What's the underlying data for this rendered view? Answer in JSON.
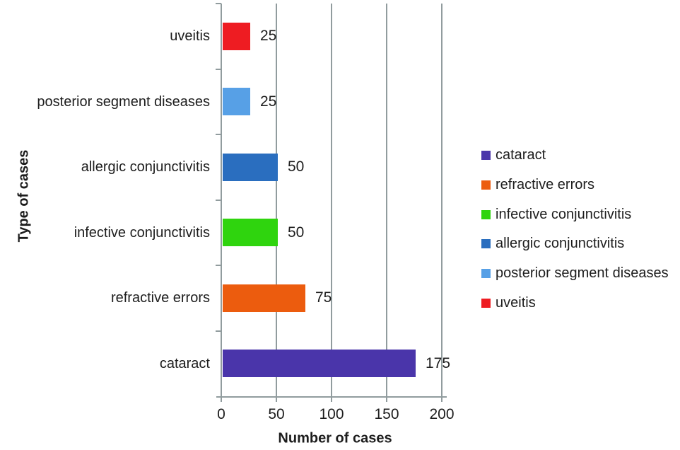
{
  "chart_data": {
    "type": "bar",
    "orientation": "horizontal",
    "title": "",
    "xlabel": "Number of cases",
    "ylabel": "Type of cases",
    "xlim": [
      0,
      200
    ],
    "xticks": [
      0,
      50,
      100,
      150,
      200
    ],
    "grid": "vertical-gridlines-on",
    "legend_position": "right",
    "categories": [
      "uveitis",
      "posterior segment diseases",
      "allergic conjunctivitis",
      "infective conjunctivitis",
      "refractive errors",
      "cataract"
    ],
    "values": [
      25,
      25,
      50,
      50,
      75,
      175
    ],
    "bar_colors": [
      "#ee1c22",
      "#57a0e6",
      "#2a6ebf",
      "#2fd40e",
      "#ec5c0e",
      "#4a35aa"
    ],
    "data_labels": [
      "25",
      "25",
      "50",
      "50",
      "75",
      "175"
    ],
    "legend": [
      {
        "label": "cataract",
        "color": "#4a35aa"
      },
      {
        "label": "refractive errors",
        "color": "#ec5c0e"
      },
      {
        "label": "infective conjunctivitis",
        "color": "#2fd40e"
      },
      {
        "label": "allergic conjunctivitis",
        "color": "#2a6ebf"
      },
      {
        "label": "posterior segment diseases",
        "color": "#57a0e6"
      },
      {
        "label": "uveitis",
        "color": "#ee1c22"
      }
    ]
  },
  "colors": {
    "grid": "#919c9e",
    "axis": "#919c9e",
    "text": "#1d1d1d",
    "background": "#ffffff"
  }
}
